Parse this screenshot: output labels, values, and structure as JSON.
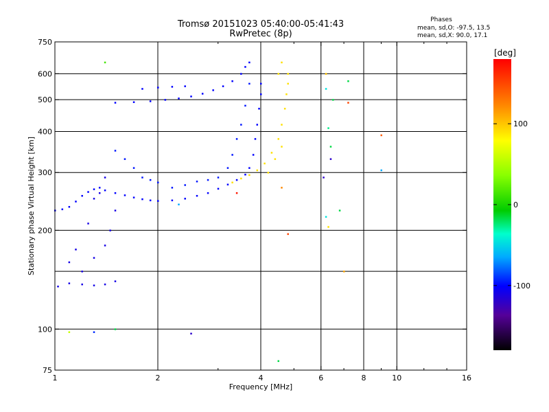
{
  "header": {
    "title_line1": "Tromsø 20151023 05:40:00-05:41:43",
    "title_line2": "RwPretec (8p)"
  },
  "phase_box": {
    "heading": "Phases",
    "line1": "mean, sd,O:  -97.5,  13.5",
    "line2": "mean, sd,X:   90.0,  17.1"
  },
  "colorbar": {
    "unit_label": "[deg]",
    "ticks": [
      "100",
      "0",
      "-100"
    ],
    "tick_values": [
      100,
      0,
      -100
    ],
    "range": [
      -180,
      180
    ]
  },
  "chart_data": {
    "type": "scatter",
    "title": "Tromsø 20151023 05:40:00-05:41:43",
    "subtitle": "RwPretec (8p)",
    "xlabel": "Frequency [MHz]",
    "ylabel": "Stationary phase Virtual Height [km]",
    "x_scale": "log",
    "y_scale": "log",
    "xlim": [
      1,
      16
    ],
    "ylim": [
      75,
      750
    ],
    "x_ticks": [
      1,
      2,
      4,
      6,
      8,
      10,
      16
    ],
    "x_tick_labels": [
      "1",
      "2",
      "4",
      "6",
      "8",
      "10",
      "16"
    ],
    "x_grid": [
      2,
      4,
      6,
      8,
      10
    ],
    "x_minor_ticks": [
      3,
      5,
      7,
      9,
      12,
      14
    ],
    "y_ticks": [
      75,
      100,
      200,
      300,
      400,
      500,
      600,
      750
    ],
    "y_tick_labels": [
      "75",
      "100",
      "200",
      "300",
      "400",
      "500",
      "600",
      "750"
    ],
    "y_grid": [
      100,
      150,
      200,
      300,
      400,
      500,
      600
    ],
    "grid": true,
    "color_encoding": "phase [deg]",
    "series": [
      {
        "trace": "O-mode E/F1 trace (blue, ~-100 deg)",
        "phase": -100,
        "points": [
          [
            1.0,
            230
          ],
          [
            1.05,
            232
          ],
          [
            1.1,
            236
          ],
          [
            1.15,
            245
          ],
          [
            1.2,
            255
          ],
          [
            1.25,
            262
          ],
          [
            1.3,
            267
          ],
          [
            1.35,
            270
          ],
          [
            1.4,
            265
          ],
          [
            1.5,
            260
          ],
          [
            1.6,
            256
          ],
          [
            1.7,
            252
          ],
          [
            1.8,
            249
          ],
          [
            1.9,
            247
          ],
          [
            2.0,
            246
          ],
          [
            2.2,
            247
          ],
          [
            2.4,
            250
          ],
          [
            2.6,
            255
          ],
          [
            2.8,
            260
          ],
          [
            3.0,
            268
          ],
          [
            3.2,
            276
          ],
          [
            3.4,
            285
          ],
          [
            3.6,
            296
          ],
          [
            3.7,
            310
          ],
          [
            3.8,
            340
          ],
          [
            3.85,
            380
          ],
          [
            3.9,
            420
          ],
          [
            3.95,
            470
          ],
          [
            4.0,
            520
          ],
          [
            4.0,
            560
          ]
        ]
      },
      {
        "trace": "O-mode low-height echoes (blue)",
        "phase": -110,
        "points": [
          [
            1.02,
            135
          ],
          [
            1.1,
            138
          ],
          [
            1.2,
            137
          ],
          [
            1.3,
            136
          ],
          [
            1.4,
            137
          ],
          [
            1.5,
            140
          ],
          [
            1.2,
            150
          ],
          [
            1.3,
            165
          ],
          [
            1.4,
            180
          ],
          [
            1.45,
            200
          ],
          [
            1.5,
            230
          ],
          [
            1.35,
            260
          ],
          [
            1.4,
            290
          ],
          [
            1.3,
            250
          ],
          [
            1.25,
            210
          ],
          [
            1.15,
            175
          ],
          [
            1.1,
            160
          ]
        ]
      },
      {
        "trace": "O-mode upper trace (blue)",
        "phase": -100,
        "points": [
          [
            1.5,
            490
          ],
          [
            1.7,
            492
          ],
          [
            1.9,
            495
          ],
          [
            2.1,
            500
          ],
          [
            2.3,
            505
          ],
          [
            2.5,
            512
          ],
          [
            2.7,
            522
          ],
          [
            2.9,
            535
          ],
          [
            3.1,
            550
          ],
          [
            3.3,
            570
          ],
          [
            3.5,
            600
          ],
          [
            3.6,
            630
          ],
          [
            3.7,
            650
          ],
          [
            1.8,
            540
          ],
          [
            2.0,
            545
          ],
          [
            2.2,
            548
          ],
          [
            2.4,
            550
          ]
        ]
      },
      {
        "trace": "Scattered echoes (blue)",
        "phase": -95,
        "points": [
          [
            1.5,
            350
          ],
          [
            1.6,
            330
          ],
          [
            1.7,
            310
          ],
          [
            1.8,
            290
          ],
          [
            1.9,
            285
          ],
          [
            2.0,
            280
          ],
          [
            2.2,
            270
          ],
          [
            2.4,
            275
          ],
          [
            2.6,
            282
          ],
          [
            2.8,
            285
          ],
          [
            3.0,
            290
          ],
          [
            3.2,
            310
          ],
          [
            3.3,
            340
          ],
          [
            3.4,
            380
          ],
          [
            3.5,
            420
          ],
          [
            3.6,
            480
          ],
          [
            3.7,
            560
          ]
        ]
      },
      {
        "trace": "X-mode trace (yellow, ~+90 deg)",
        "phase": 90,
        "points": [
          [
            3.3,
            280
          ],
          [
            3.5,
            288
          ],
          [
            3.7,
            295
          ],
          [
            3.9,
            305
          ],
          [
            4.1,
            320
          ],
          [
            4.3,
            345
          ],
          [
            4.5,
            380
          ],
          [
            4.6,
            420
          ],
          [
            4.7,
            470
          ],
          [
            4.75,
            520
          ],
          [
            4.8,
            560
          ],
          [
            4.8,
            600
          ],
          [
            4.5,
            600
          ],
          [
            4.6,
            650
          ],
          [
            4.2,
            300
          ],
          [
            4.4,
            330
          ],
          [
            4.6,
            360
          ]
        ]
      },
      {
        "trace": "Sparse outliers",
        "points": [
          [
            1.1,
            98,
            60
          ],
          [
            1.3,
            98,
            -90
          ],
          [
            1.4,
            650,
            20
          ],
          [
            1.5,
            100,
            -10
          ],
          [
            2.5,
            97,
            -120
          ],
          [
            4.5,
            80,
            -10
          ],
          [
            4.6,
            270,
            120
          ],
          [
            4.8,
            195,
            150
          ],
          [
            6.2,
            600,
            100
          ],
          [
            6.2,
            540,
            -40
          ],
          [
            6.3,
            410,
            -20
          ],
          [
            6.4,
            360,
            -10
          ],
          [
            6.4,
            330,
            -120
          ],
          [
            6.1,
            290,
            -120
          ],
          [
            6.2,
            220,
            -40
          ],
          [
            6.3,
            205,
            90
          ],
          [
            6.5,
            500,
            -10
          ],
          [
            6.8,
            230,
            -10
          ],
          [
            7.0,
            150,
            110
          ],
          [
            7.2,
            570,
            -10
          ],
          [
            7.2,
            490,
            150
          ],
          [
            9.0,
            390,
            140
          ],
          [
            9.0,
            305,
            -60
          ],
          [
            3.4,
            260,
            170
          ],
          [
            2.3,
            240,
            -60
          ]
        ]
      }
    ]
  }
}
